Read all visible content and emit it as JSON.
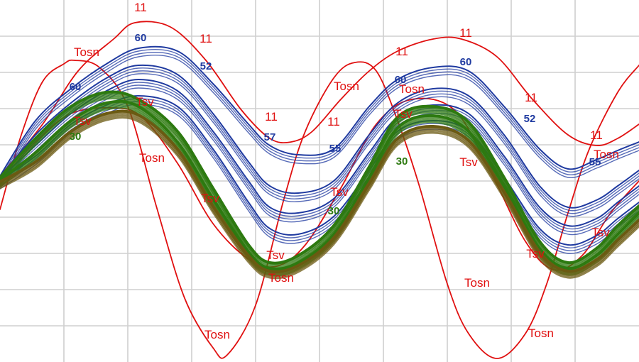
{
  "chart_data": {
    "type": "line",
    "title": "",
    "xlabel": "",
    "ylabel": "",
    "grid": true,
    "xlim": [
      0,
      900
    ],
    "ylim": [
      0,
      510
    ],
    "colors": {
      "red": "#e01010",
      "blue": "#1f3aa0",
      "green": "#2d7a10",
      "olive": "#6b5a12",
      "grid": "#cfcfcf"
    },
    "labels": {
      "eleven": "11",
      "tosn": "Tosn",
      "tsv": "Tsv",
      "b60": "60",
      "b55": "55",
      "b52": "52",
      "b57": "57",
      "g30": "30"
    },
    "series": [
      {
        "label_key": "eleven",
        "color_key": "red",
        "x": [
          0,
          60,
          110,
          160,
          190,
          240,
          290,
          340,
          380,
          410,
          440,
          480,
          520,
          560,
          610,
          650,
          700,
          750,
          800,
          840,
          870,
          900
        ],
        "y": [
          248,
          175,
          100,
          55,
          32,
          38,
          85,
          155,
          195,
          200,
          185,
          140,
          100,
          72,
          55,
          55,
          80,
          140,
          190,
          205,
          195,
          175
        ]
      },
      {
        "label_key": "tosn",
        "color_key": "red",
        "x": [
          0,
          30,
          60,
          90,
          105,
          140,
          180,
          220,
          260,
          300,
          320,
          360,
          400,
          430,
          470,
          500,
          530,
          560,
          590,
          630,
          660,
          700,
          740,
          770,
          800,
          830,
          870,
          900
        ],
        "y": [
          295,
          190,
          115,
          90,
          85,
          95,
          150,
          290,
          420,
          490,
          500,
          430,
          280,
          185,
          110,
          88,
          100,
          170,
          260,
          400,
          470,
          505,
          470,
          400,
          300,
          210,
          130,
          92
        ]
      },
      {
        "label_key": "tosn",
        "color_key": "red",
        "x": [
          0,
          50,
          100,
          160,
          200,
          250,
          300,
          350,
          390,
          430,
          480,
          530,
          580,
          640,
          690,
          740,
          780,
          820,
          860,
          900
        ],
        "y": [
          255,
          200,
          160,
          152,
          165,
          230,
          315,
          365,
          375,
          345,
          265,
          175,
          140,
          155,
          240,
          340,
          380,
          360,
          300,
          255
        ]
      },
      {
        "label_key": "b60",
        "color_key": "blue",
        "x": [
          0,
          50,
          100,
          150,
          195,
          250,
          300,
          350,
          380,
          420,
          470,
          520,
          560,
          610,
          660,
          710,
          760,
          800,
          840,
          870,
          900
        ],
        "y": [
          248,
          170,
          125,
          90,
          68,
          72,
          118,
          175,
          205,
          218,
          210,
          150,
          112,
          95,
          100,
          150,
          210,
          238,
          225,
          212,
          200
        ]
      },
      {
        "label_key": "b55",
        "color_key": "blue",
        "x": [
          0,
          50,
          100,
          150,
          195,
          250,
          300,
          350,
          380,
          420,
          470,
          520,
          560,
          610,
          660,
          710,
          760,
          800,
          840,
          870,
          900
        ],
        "y": [
          250,
          190,
          145,
          110,
          92,
          105,
          160,
          228,
          262,
          272,
          255,
          190,
          145,
          125,
          135,
          190,
          262,
          292,
          282,
          262,
          240
        ]
      },
      {
        "label_key": "b52",
        "color_key": "blue",
        "x": [
          0,
          50,
          100,
          150,
          195,
          250,
          300,
          350,
          380,
          420,
          470,
          520,
          560,
          610,
          660,
          710,
          760,
          800,
          840,
          870,
          900
        ],
        "y": [
          252,
          205,
          160,
          128,
          112,
          128,
          185,
          255,
          292,
          300,
          280,
          215,
          165,
          148,
          160,
          220,
          292,
          318,
          308,
          285,
          262
        ]
      },
      {
        "label_key": "b57",
        "color_key": "blue",
        "x": [
          0,
          50,
          100,
          150,
          195,
          250,
          300,
          350,
          380,
          420,
          470,
          520,
          560,
          610,
          660,
          710,
          760,
          800,
          840,
          870,
          900
        ],
        "y": [
          254,
          220,
          175,
          148,
          135,
          150,
          210,
          285,
          322,
          330,
          305,
          240,
          185,
          170,
          185,
          250,
          322,
          345,
          332,
          308,
          285
        ]
      },
      {
        "label_key": "tsv",
        "color_key": "green",
        "x": [
          0,
          50,
          100,
          150,
          195,
          250,
          300,
          350,
          380,
          420,
          470,
          520,
          560,
          610,
          660,
          710,
          760,
          800,
          840,
          870,
          900
        ],
        "y": [
          250,
          195,
          150,
          130,
          140,
          185,
          265,
          345,
          370,
          360,
          318,
          235,
          165,
          150,
          172,
          250,
          340,
          370,
          350,
          318,
          290
        ]
      },
      {
        "label_key": "g30",
        "color_key": "green",
        "x": [
          0,
          50,
          100,
          150,
          195,
          250,
          300,
          350,
          380,
          420,
          470,
          520,
          560,
          610,
          660,
          710,
          760,
          800,
          840,
          870,
          900
        ],
        "y": [
          254,
          215,
          170,
          145,
          150,
          200,
          280,
          355,
          378,
          370,
          330,
          250,
          180,
          163,
          185,
          262,
          350,
          378,
          360,
          330,
          300
        ]
      },
      {
        "label_key": "g30",
        "color_key": "olive",
        "x": [
          0,
          50,
          100,
          150,
          195,
          250,
          300,
          350,
          380,
          420,
          470,
          520,
          560,
          610,
          660,
          710,
          760,
          800,
          840,
          870,
          900
        ],
        "y": [
          256,
          228,
          185,
          160,
          162,
          210,
          290,
          360,
          382,
          374,
          335,
          258,
          195,
          178,
          198,
          270,
          355,
          382,
          366,
          338,
          310
        ]
      }
    ],
    "annotations": [
      {
        "label_key": "eleven",
        "color_key": "red",
        "x": 198,
        "y": 16
      },
      {
        "label_key": "eleven",
        "color_key": "red",
        "x": 290,
        "y": 60
      },
      {
        "label_key": "eleven",
        "color_key": "red",
        "x": 382,
        "y": 170
      },
      {
        "label_key": "eleven",
        "color_key": "red",
        "x": 470,
        "y": 177
      },
      {
        "label_key": "eleven",
        "color_key": "red",
        "x": 566,
        "y": 78
      },
      {
        "label_key": "eleven",
        "color_key": "red",
        "x": 656,
        "y": 52
      },
      {
        "label_key": "eleven",
        "color_key": "red",
        "x": 748,
        "y": 143
      },
      {
        "label_key": "eleven",
        "color_key": "red",
        "x": 840,
        "y": 196
      },
      {
        "label_key": "tosn",
        "color_key": "red",
        "x": 122,
        "y": 79
      },
      {
        "label_key": "tosn",
        "color_key": "red",
        "x": 488,
        "y": 127
      },
      {
        "label_key": "tosn",
        "color_key": "red",
        "x": 580,
        "y": 131
      },
      {
        "label_key": "tosn",
        "color_key": "red",
        "x": 214,
        "y": 228
      },
      {
        "label_key": "tosn",
        "color_key": "red",
        "x": 854,
        "y": 223
      },
      {
        "label_key": "tosn",
        "color_key": "red",
        "x": 396,
        "y": 397
      },
      {
        "label_key": "tosn",
        "color_key": "red",
        "x": 672,
        "y": 404
      },
      {
        "label_key": "tosn",
        "color_key": "red",
        "x": 306,
        "y": 477
      },
      {
        "label_key": "tosn",
        "color_key": "red",
        "x": 762,
        "y": 475
      },
      {
        "label_key": "tsv",
        "color_key": "red",
        "x": 116,
        "y": 176
      },
      {
        "label_key": "tsv",
        "color_key": "red",
        "x": 204,
        "y": 149
      },
      {
        "label_key": "tsv",
        "color_key": "red",
        "x": 296,
        "y": 285
      },
      {
        "label_key": "tsv",
        "color_key": "red",
        "x": 388,
        "y": 365
      },
      {
        "label_key": "tsv",
        "color_key": "red",
        "x": 478,
        "y": 276
      },
      {
        "label_key": "tsv",
        "color_key": "red",
        "x": 568,
        "y": 166
      },
      {
        "label_key": "tsv",
        "color_key": "red",
        "x": 660,
        "y": 234
      },
      {
        "label_key": "tsv",
        "color_key": "red",
        "x": 754,
        "y": 363
      },
      {
        "label_key": "tsv",
        "color_key": "red",
        "x": 846,
        "y": 333
      },
      {
        "label_key": "b60",
        "color_key": "blue",
        "x": 106,
        "y": 127
      },
      {
        "label_key": "b60",
        "color_key": "blue",
        "x": 198,
        "y": 58
      },
      {
        "label_key": "b52",
        "color_key": "blue",
        "x": 290,
        "y": 98
      },
      {
        "label_key": "b57",
        "color_key": "blue",
        "x": 380,
        "y": 198
      },
      {
        "label_key": "b55",
        "color_key": "blue",
        "x": 472,
        "y": 214
      },
      {
        "label_key": "b60",
        "color_key": "blue",
        "x": 564,
        "y": 117
      },
      {
        "label_key": "b60",
        "color_key": "blue",
        "x": 656,
        "y": 92
      },
      {
        "label_key": "b52",
        "color_key": "blue",
        "x": 746,
        "y": 172
      },
      {
        "label_key": "b55",
        "color_key": "blue",
        "x": 838,
        "y": 233
      },
      {
        "label_key": "g30",
        "color_key": "green",
        "x": 106,
        "y": 197
      },
      {
        "label_key": "g30",
        "color_key": "green",
        "x": 470,
        "y": 302
      },
      {
        "label_key": "g30",
        "color_key": "green",
        "x": 566,
        "y": 232
      }
    ]
  }
}
